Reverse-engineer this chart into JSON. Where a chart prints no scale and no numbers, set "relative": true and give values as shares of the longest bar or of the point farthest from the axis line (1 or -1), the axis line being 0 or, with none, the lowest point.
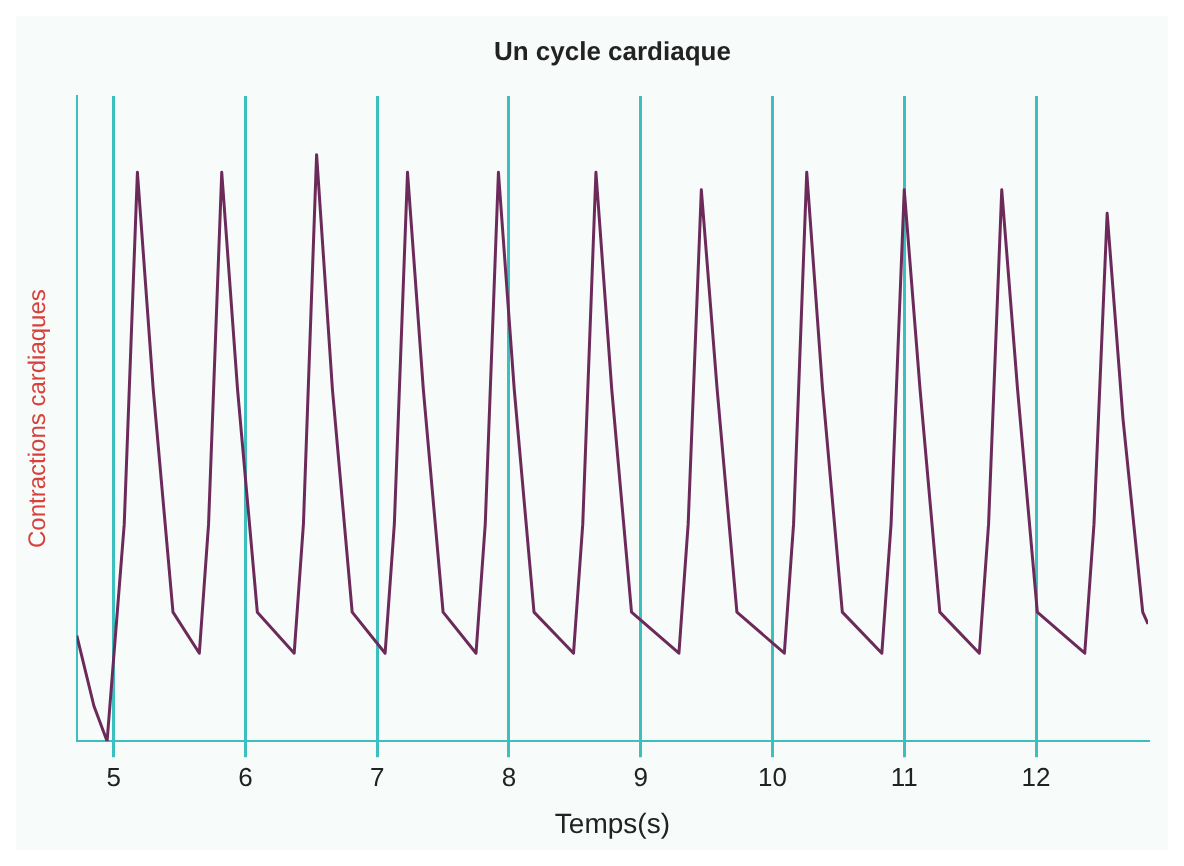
{
  "chart_data": {
    "type": "line",
    "xlabel": "Temps(s)",
    "ylabel": "Contractions cardiaques",
    "annotations": [
      "Un cycle cardiaque"
    ],
    "relative": true,
    "grid": "x",
    "legend": false,
    "marker": "none",
    "line_style": "solid",
    "xlim": [
      4.72,
      12.85
    ],
    "xticks": [
      5,
      6,
      7,
      8,
      9,
      10,
      11,
      12
    ],
    "x": [
      4.72,
      4.85,
      4.95,
      5.08,
      5.18,
      5.3,
      5.45,
      5.65,
      5.72,
      5.82,
      5.94,
      6.09,
      6.37,
      6.44,
      6.54,
      6.66,
      6.81,
      7.06,
      7.13,
      7.23,
      7.35,
      7.5,
      7.75,
      7.82,
      7.92,
      8.04,
      8.19,
      8.49,
      8.56,
      8.66,
      8.78,
      8.93,
      9.29,
      9.36,
      9.46,
      9.58,
      9.73,
      10.09,
      10.16,
      10.26,
      10.38,
      10.53,
      10.83,
      10.9,
      11.0,
      11.12,
      11.27,
      11.57,
      11.64,
      11.74,
      11.86,
      12.01,
      12.37,
      12.44,
      12.54,
      12.66,
      12.81,
      12.85
    ],
    "series": [
      {
        "color": "#6b2a5a",
        "values": [
          0.18,
          0.06,
          0,
          0.37,
          0.97,
          0.6,
          0.22,
          0.15,
          0.37,
          0.97,
          0.6,
          0.22,
          0.15,
          0.37,
          1,
          0.6,
          0.22,
          0.15,
          0.37,
          0.97,
          0.6,
          0.22,
          0.15,
          0.37,
          0.97,
          0.6,
          0.22,
          0.15,
          0.37,
          0.97,
          0.6,
          0.22,
          0.15,
          0.37,
          0.94,
          0.6,
          0.22,
          0.15,
          0.37,
          0.97,
          0.6,
          0.22,
          0.15,
          0.37,
          0.94,
          0.6,
          0.22,
          0.15,
          0.37,
          0.94,
          0.6,
          0.22,
          0.15,
          0.37,
          0.9,
          0.55,
          0.22,
          0.2
        ]
      }
    ]
  }
}
